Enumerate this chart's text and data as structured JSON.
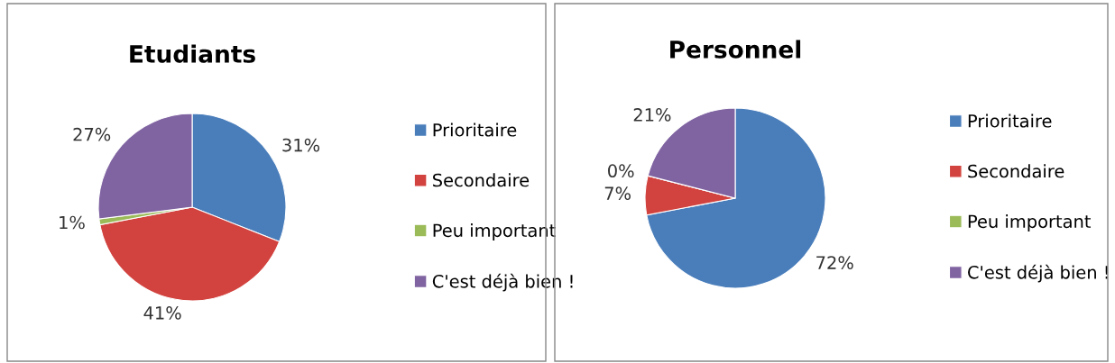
{
  "chart_data": [
    {
      "type": "pie",
      "title": "Etudiants",
      "categories": [
        "Prioritaire",
        "Secondaire",
        "Peu important",
        "C'est déjà bien !"
      ],
      "values": [
        31,
        41,
        1,
        27
      ],
      "value_labels": [
        "31%",
        "41%",
        "1%",
        "27%"
      ],
      "colors": [
        "#4a7ebb",
        "#d2433f",
        "#9bbb59",
        "#8064a2"
      ],
      "legend": "right"
    },
    {
      "type": "pie",
      "title": "Personnel",
      "categories": [
        "Prioritaire",
        "Secondaire",
        "Peu important",
        "C'est déjà bien !"
      ],
      "values": [
        72,
        7,
        0,
        21
      ],
      "value_labels": [
        "72%",
        "7%",
        "0%",
        "21%"
      ],
      "colors": [
        "#4a7ebb",
        "#d2433f",
        "#9bbb59",
        "#8064a2"
      ],
      "legend": "right"
    }
  ]
}
